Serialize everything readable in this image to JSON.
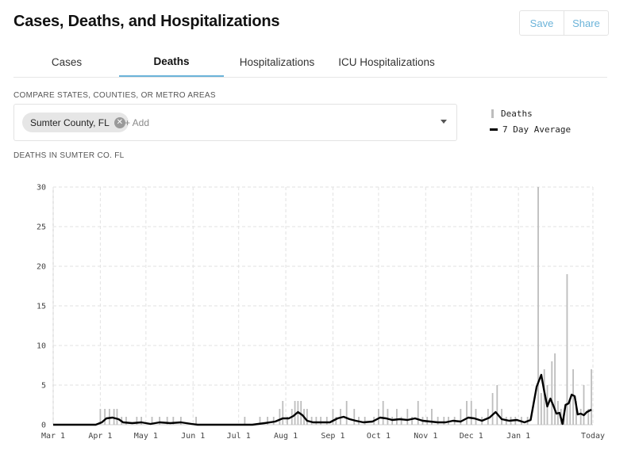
{
  "header": {
    "title": "Cases, Deaths, and Hospitalizations",
    "save_label": "Save",
    "share_label": "Share"
  },
  "tabs": [
    {
      "label": "Cases",
      "active": false
    },
    {
      "label": "Deaths",
      "active": true
    },
    {
      "label": "Hospitalizations",
      "active": false
    },
    {
      "label": "ICU Hospitalizations",
      "active": false
    }
  ],
  "compare": {
    "label": "COMPARE STATES, COUNTIES, OR METRO AREAS",
    "selected": "Sumter County, FL",
    "add_placeholder": "+ Add"
  },
  "legend": [
    {
      "label": "Deaths",
      "type": "bar",
      "color": "#bdbdbd"
    },
    {
      "label": "7 Day Average",
      "type": "line",
      "color": "#000000"
    }
  ],
  "chart_title": "DEATHS IN SUMTER CO. FL",
  "chart_data": {
    "type": "bar",
    "title": "DEATHS IN SUMTER CO. FL",
    "ylim": [
      0,
      30
    ],
    "yticks": [
      "0",
      "5",
      "10",
      "15",
      "20",
      "25",
      "30"
    ],
    "xticks": [
      "Mar 1",
      "Apr 1",
      "May 1",
      "Jun 1",
      "Jul 1",
      "Aug 1",
      "Sep 1",
      "Oct 1",
      "Nov 1",
      "Dec 1",
      "Jan 1",
      "Today"
    ],
    "grid": true,
    "series": [
      {
        "name": "Deaths",
        "type": "bar",
        "color": "#bdbdbd",
        "points": [
          [
            "Apr 1",
            2
          ],
          [
            "Apr 4",
            2
          ],
          [
            "Apr 7",
            2
          ],
          [
            "Apr 10",
            2
          ],
          [
            "Apr 12",
            2
          ],
          [
            "Apr 15",
            1
          ],
          [
            "Apr 18",
            1
          ],
          [
            "Apr 25",
            1
          ],
          [
            "Apr 28",
            1
          ],
          [
            "May 5",
            1
          ],
          [
            "May 10",
            1
          ],
          [
            "May 15",
            1
          ],
          [
            "May 19",
            1
          ],
          [
            "May 24",
            1
          ],
          [
            "Jun 3",
            1
          ],
          [
            "Jul 5",
            1
          ],
          [
            "Jul 15",
            1
          ],
          [
            "Jul 20",
            1
          ],
          [
            "Jul 24",
            1
          ],
          [
            "Jul 28",
            2
          ],
          [
            "Jul 30",
            3
          ],
          [
            "Aug 2",
            1
          ],
          [
            "Aug 5",
            2
          ],
          [
            "Aug 7",
            3
          ],
          [
            "Aug 9",
            3
          ],
          [
            "Aug 11",
            3
          ],
          [
            "Aug 13",
            2
          ],
          [
            "Aug 15",
            2
          ],
          [
            "Aug 18",
            1
          ],
          [
            "Aug 21",
            1
          ],
          [
            "Aug 24",
            1
          ],
          [
            "Aug 28",
            1
          ],
          [
            "Sep 1",
            2
          ],
          [
            "Sep 3",
            1
          ],
          [
            "Sep 6",
            2
          ],
          [
            "Sep 10",
            3
          ],
          [
            "Sep 15",
            2
          ],
          [
            "Sep 18",
            1
          ],
          [
            "Sep 22",
            1
          ],
          [
            "Sep 28",
            1
          ],
          [
            "Oct 1",
            2
          ],
          [
            "Oct 4",
            3
          ],
          [
            "Oct 7",
            2
          ],
          [
            "Oct 10",
            1
          ],
          [
            "Oct 13",
            2
          ],
          [
            "Oct 16",
            1
          ],
          [
            "Oct 20",
            2
          ],
          [
            "Oct 23",
            1
          ],
          [
            "Oct 27",
            3
          ],
          [
            "Oct 30",
            1
          ],
          [
            "Nov 2",
            1
          ],
          [
            "Nov 5",
            2
          ],
          [
            "Nov 9",
            1
          ],
          [
            "Nov 13",
            1
          ],
          [
            "Nov 16",
            1
          ],
          [
            "Nov 20",
            1
          ],
          [
            "Nov 24",
            2
          ],
          [
            "Nov 28",
            3
          ],
          [
            "Dec 1",
            3
          ],
          [
            "Dec 4",
            2
          ],
          [
            "Dec 8",
            1
          ],
          [
            "Dec 12",
            2
          ],
          [
            "Dec 15",
            4
          ],
          [
            "Dec 18",
            5
          ],
          [
            "Dec 21",
            2
          ],
          [
            "Dec 24",
            1
          ],
          [
            "Dec 27",
            1
          ],
          [
            "Dec 30",
            1
          ],
          [
            "Jan 3",
            1
          ],
          [
            "Jan 7",
            1
          ],
          [
            "Jan 14",
            30
          ],
          [
            "Jan 16",
            4
          ],
          [
            "Jan 18",
            7
          ],
          [
            "Jan 20",
            5
          ],
          [
            "Jan 23",
            8
          ],
          [
            "Jan 25",
            9
          ],
          [
            "Jan 27",
            3
          ],
          [
            "Jan 29",
            2
          ],
          [
            "Jan 31",
            1
          ],
          [
            "Feb 2",
            19
          ],
          [
            "Feb 4",
            3
          ],
          [
            "Feb 6",
            7
          ],
          [
            "Feb 8",
            3
          ],
          [
            "Feb 11",
            2
          ],
          [
            "Feb 13",
            5
          ],
          [
            "Feb 16",
            2
          ],
          [
            "Feb 18",
            7
          ]
        ]
      },
      {
        "name": "7 Day Average",
        "type": "line",
        "color": "#000000",
        "points": [
          [
            "Mar 1",
            0
          ],
          [
            "Mar 29",
            0
          ],
          [
            "Apr 2",
            0.3
          ],
          [
            "Apr 5",
            0.8
          ],
          [
            "Apr 9",
            0.9
          ],
          [
            "Apr 13",
            0.7
          ],
          [
            "Apr 16",
            0.3
          ],
          [
            "Apr 22",
            0.2
          ],
          [
            "Apr 28",
            0.3
          ],
          [
            "May 4",
            0.1
          ],
          [
            "May 10",
            0.3
          ],
          [
            "May 17",
            0.2
          ],
          [
            "May 24",
            0.3
          ],
          [
            "May 31",
            0.1
          ],
          [
            "Jun 4",
            0
          ],
          [
            "Jul 10",
            0
          ],
          [
            "Jul 18",
            0.2
          ],
          [
            "Jul 25",
            0.4
          ],
          [
            "Jul 30",
            0.8
          ],
          [
            "Aug 3",
            0.8
          ],
          [
            "Aug 6",
            1.1
          ],
          [
            "Aug 9",
            1.6
          ],
          [
            "Aug 12",
            1.2
          ],
          [
            "Aug 15",
            0.5
          ],
          [
            "Aug 19",
            0.3
          ],
          [
            "Aug 25",
            0.3
          ],
          [
            "Aug 30",
            0.3
          ],
          [
            "Sep 4",
            0.8
          ],
          [
            "Sep 8",
            1.0
          ],
          [
            "Sep 12",
            0.7
          ],
          [
            "Sep 16",
            0.5
          ],
          [
            "Sep 21",
            0.3
          ],
          [
            "Sep 27",
            0.4
          ],
          [
            "Oct 2",
            0.9
          ],
          [
            "Oct 6",
            0.8
          ],
          [
            "Oct 10",
            0.6
          ],
          [
            "Oct 15",
            0.7
          ],
          [
            "Oct 20",
            0.6
          ],
          [
            "Oct 25",
            0.8
          ],
          [
            "Oct 30",
            0.5
          ],
          [
            "Nov 4",
            0.4
          ],
          [
            "Nov 9",
            0.3
          ],
          [
            "Nov 14",
            0.3
          ],
          [
            "Nov 19",
            0.5
          ],
          [
            "Nov 24",
            0.4
          ],
          [
            "Nov 29",
            0.9
          ],
          [
            "Dec 3",
            0.8
          ],
          [
            "Dec 8",
            0.5
          ],
          [
            "Dec 13",
            0.9
          ],
          [
            "Dec 17",
            1.6
          ],
          [
            "Dec 21",
            0.7
          ],
          [
            "Dec 26",
            0.5
          ],
          [
            "Dec 31",
            0.6
          ],
          [
            "Jan 5",
            0.3
          ],
          [
            "Jan 9",
            0.6
          ],
          [
            "Jan 13",
            4.8
          ],
          [
            "Jan 16",
            6.3
          ],
          [
            "Jan 18",
            4.2
          ],
          [
            "Jan 20",
            2.3
          ],
          [
            "Jan 22",
            3.3
          ],
          [
            "Jan 24",
            2.4
          ],
          [
            "Jan 26",
            1.4
          ],
          [
            "Jan 28",
            1.5
          ],
          [
            "Jan 30",
            0.1
          ],
          [
            "Feb 1",
            2.5
          ],
          [
            "Feb 3",
            2.7
          ],
          [
            "Feb 5",
            3.8
          ],
          [
            "Feb 7",
            3.6
          ],
          [
            "Feb 9",
            1.3
          ],
          [
            "Feb 11",
            1.4
          ],
          [
            "Feb 13",
            1.2
          ],
          [
            "Feb 15",
            1.6
          ],
          [
            "Feb 18",
            1.9
          ]
        ]
      }
    ]
  }
}
